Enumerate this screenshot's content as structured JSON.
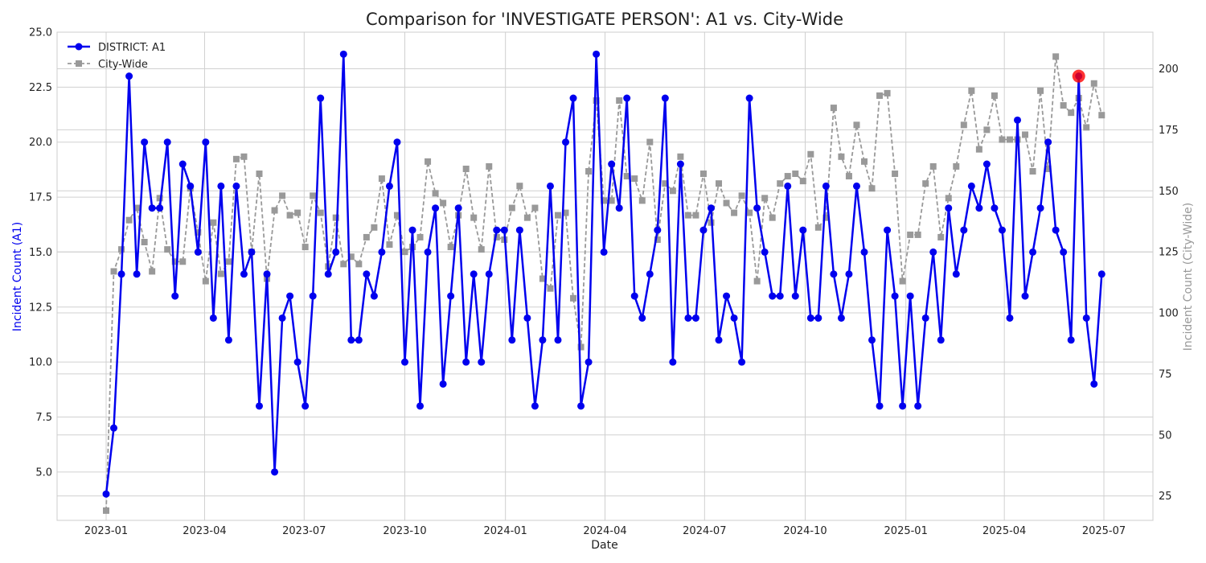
{
  "chart_data": {
    "type": "line",
    "title": "Comparison for 'INVESTIGATE PERSON': A1 vs. City-Wide",
    "xlabel": "Date",
    "ylabel_left": "Incident Count (A1)",
    "ylabel_right": "Incident Count (City-Wide)",
    "ylim_left": [
      2.8,
      25.0
    ],
    "ylim_right": [
      15,
      215
    ],
    "y_ticks_left": [
      "5.0",
      "7.5",
      "10.0",
      "12.5",
      "15.0",
      "17.5",
      "20.0",
      "22.5",
      "25.0"
    ],
    "y_ticks_right": [
      "25",
      "50",
      "75",
      "100",
      "125",
      "150",
      "175",
      "200"
    ],
    "x_ticks": [
      "2023-01",
      "2023-04",
      "2023-07",
      "2023-10",
      "2024-01",
      "2024-04",
      "2024-07",
      "2024-10",
      "2025-01",
      "2025-04",
      "2025-07"
    ],
    "grid": true,
    "legend_placement": "top-left",
    "highlight": {
      "date": "2025-06-08",
      "value": 23
    },
    "x_dates": [
      "2023-01-01",
      "2023-01-08",
      "2023-01-15",
      "2023-01-22",
      "2023-01-29",
      "2023-02-05",
      "2023-02-12",
      "2023-02-19",
      "2023-02-26",
      "2023-03-05",
      "2023-03-12",
      "2023-03-19",
      "2023-03-26",
      "2023-04-02",
      "2023-04-09",
      "2023-04-16",
      "2023-04-23",
      "2023-04-30",
      "2023-05-07",
      "2023-05-14",
      "2023-05-21",
      "2023-05-28",
      "2023-06-04",
      "2023-06-11",
      "2023-06-18",
      "2023-06-25",
      "2023-07-02",
      "2023-07-09",
      "2023-07-16",
      "2023-07-23",
      "2023-07-30",
      "2023-08-06",
      "2023-08-13",
      "2023-08-20",
      "2023-08-27",
      "2023-09-03",
      "2023-09-10",
      "2023-09-17",
      "2023-09-24",
      "2023-10-01",
      "2023-10-08",
      "2023-10-15",
      "2023-10-22",
      "2023-10-29",
      "2023-11-05",
      "2023-11-12",
      "2023-11-19",
      "2023-11-26",
      "2023-12-03",
      "2023-12-10",
      "2023-12-17",
      "2023-12-24",
      "2023-12-31",
      "2024-01-07",
      "2024-01-14",
      "2024-01-21",
      "2024-01-28",
      "2024-02-04",
      "2024-02-11",
      "2024-02-18",
      "2024-02-25",
      "2024-03-03",
      "2024-03-10",
      "2024-03-17",
      "2024-03-24",
      "2024-03-31",
      "2024-04-07",
      "2024-04-14",
      "2024-04-21",
      "2024-04-28",
      "2024-05-05",
      "2024-05-12",
      "2024-05-19",
      "2024-05-26",
      "2024-06-02",
      "2024-06-09",
      "2024-06-16",
      "2024-06-23",
      "2024-06-30",
      "2024-07-07",
      "2024-07-14",
      "2024-07-21",
      "2024-07-28",
      "2024-08-04",
      "2024-08-11",
      "2024-08-18",
      "2024-08-25",
      "2024-09-01",
      "2024-09-08",
      "2024-09-15",
      "2024-09-22",
      "2024-09-29",
      "2024-10-06",
      "2024-10-13",
      "2024-10-20",
      "2024-10-27",
      "2024-11-03",
      "2024-11-10",
      "2024-11-17",
      "2024-11-24",
      "2024-12-01",
      "2024-12-08",
      "2024-12-15",
      "2024-12-22",
      "2024-12-29",
      "2025-01-05",
      "2025-01-12",
      "2025-01-19",
      "2025-01-26",
      "2025-02-02",
      "2025-02-09",
      "2025-02-16",
      "2025-02-23",
      "2025-03-02",
      "2025-03-09",
      "2025-03-16",
      "2025-03-23",
      "2025-03-30",
      "2025-04-06",
      "2025-04-13",
      "2025-04-20",
      "2025-04-27",
      "2025-05-04",
      "2025-05-11",
      "2025-05-18",
      "2025-05-25",
      "2025-06-01",
      "2025-06-08",
      "2025-06-15",
      "2025-06-22",
      "2025-06-29"
    ],
    "series": [
      {
        "name": "DISTRICT: A1",
        "axis": "left",
        "color": "#0000ee",
        "style": "solid",
        "marker": "circle",
        "values": [
          4,
          7,
          14,
          23,
          14,
          20,
          17,
          17,
          20,
          13,
          19,
          18,
          15,
          20,
          12,
          18,
          11,
          18,
          14,
          15,
          8,
          14,
          5,
          12,
          13,
          10,
          8,
          13,
          22,
          14,
          15,
          24,
          11,
          11,
          14,
          13,
          15,
          18,
          20,
          10,
          16,
          8,
          15,
          17,
          9,
          13,
          17,
          10,
          14,
          10,
          14,
          16,
          16,
          11,
          16,
          12,
          8,
          11,
          18,
          11,
          20,
          22,
          8,
          10,
          24,
          15,
          19,
          17,
          22,
          13,
          12,
          14,
          16,
          22,
          10,
          19,
          12,
          12,
          16,
          17,
          11,
          13,
          12,
          10,
          22,
          17,
          15,
          13,
          13,
          18,
          13,
          16,
          12,
          12,
          18,
          14,
          12,
          14,
          18,
          15,
          11,
          8,
          16,
          13,
          8,
          13,
          8,
          12,
          15,
          11,
          17,
          14,
          16,
          18,
          17,
          19,
          17,
          16,
          12,
          21,
          13,
          15,
          17,
          20,
          16,
          15,
          11,
          23,
          12,
          9,
          14
        ]
      },
      {
        "name": "City-Wide",
        "axis": "right",
        "color": "#999999",
        "style": "dashed",
        "marker": "square",
        "values": [
          19,
          117,
          126,
          138,
          143,
          129,
          117,
          147,
          126,
          121,
          121,
          151,
          133,
          113,
          137,
          116,
          121,
          163,
          164,
          125,
          157,
          114,
          142,
          148,
          140,
          141,
          127,
          148,
          141,
          119,
          139,
          120,
          123,
          120,
          131,
          135,
          155,
          128,
          140,
          125,
          127,
          131,
          162,
          149,
          145,
          127,
          140,
          159,
          139,
          126,
          160,
          131,
          130,
          143,
          152,
          139,
          143,
          114,
          110,
          140,
          141,
          106,
          86,
          158,
          187,
          146,
          146,
          187,
          156,
          155,
          146,
          170,
          130,
          153,
          150,
          164,
          140,
          140,
          157,
          137,
          153,
          145,
          141,
          148,
          141,
          113,
          147,
          139,
          153,
          156,
          157,
          154,
          165,
          135,
          139,
          184,
          164,
          156,
          177,
          162,
          151,
          189,
          190,
          157,
          113,
          132,
          132,
          153,
          160,
          131,
          147,
          160,
          177,
          191,
          167,
          175,
          189,
          171,
          171,
          171,
          173,
          158,
          191,
          159,
          205,
          185,
          182,
          188,
          176,
          194,
          181
        ]
      }
    ]
  }
}
